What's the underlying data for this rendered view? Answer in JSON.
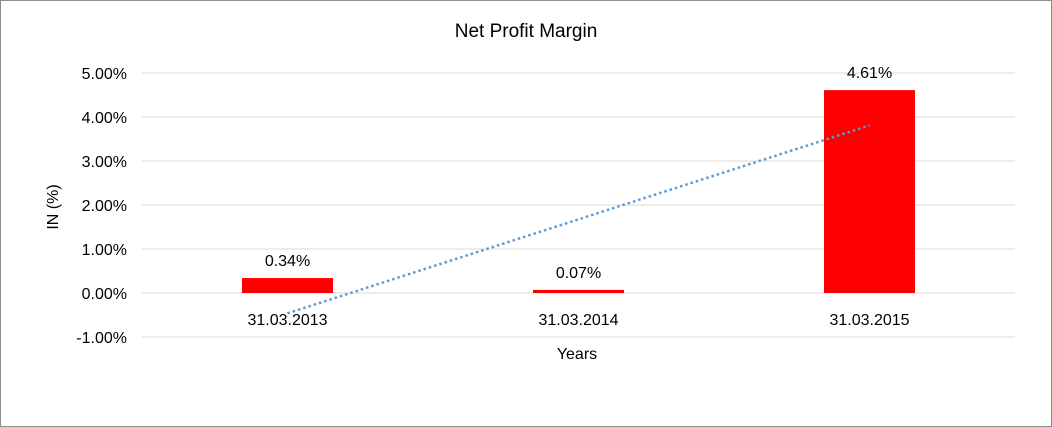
{
  "chart_data": {
    "type": "bar",
    "title": "Net Profit Margin",
    "xlabel": "Years",
    "ylabel": "IN (%)",
    "categories": [
      "31.03.2013",
      "31.03.2014",
      "31.03.2015"
    ],
    "series": [
      {
        "values": [
          0.34,
          0.07,
          4.61
        ],
        "color": "#ff0000"
      }
    ],
    "data_labels": [
      "0.34%",
      "0.07%",
      "4.61%"
    ],
    "trendline": {
      "type": "linear",
      "style": "dotted",
      "color": "#5b9bd5"
    },
    "ylim": [
      -1,
      5
    ],
    "yticks": [
      5,
      4,
      3,
      2,
      1,
      0,
      -1
    ],
    "ytick_labels": [
      "5.00%",
      "4.00%",
      "3.00%",
      "2.00%",
      "1.00%",
      "0.00%",
      "-1.00%"
    ],
    "grid": true,
    "legend": "none"
  }
}
